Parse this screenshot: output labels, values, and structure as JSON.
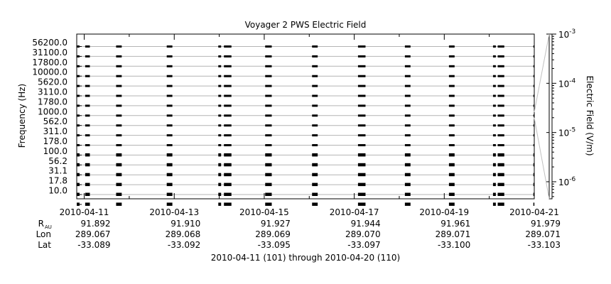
{
  "chart_data": {
    "type": "spectrogram",
    "title": "Voyager 2 PWS Electric Field",
    "ylabel": "Frequency (Hz)",
    "colorbar_label": "Electric Field (V/m)",
    "y_scale": "log",
    "colorbar_scale": "log",
    "colorbar_range": [
      4.5e-07,
      0.001
    ],
    "colorbar_ticks": [
      {
        "value": 0.001,
        "base": "10",
        "exp": "-3"
      },
      {
        "value": 0.0001,
        "base": "10",
        "exp": "-4"
      },
      {
        "value": 1e-05,
        "base": "10",
        "exp": "-5"
      },
      {
        "value": 1e-06,
        "base": "10",
        "exp": "-6"
      }
    ],
    "channels": [
      "56200.0",
      "31100.0",
      "17800.0",
      "10000.0",
      "5620.0",
      "3110.0",
      "1780.0",
      "1000.0",
      "562.0",
      "311.0",
      "178.0",
      "100.0",
      "56.2",
      "31.1",
      "17.8",
      "10.0"
    ],
    "x_range": [
      "2010-04-10T20:00",
      "2010-04-21T00:00"
    ],
    "x_ticks": [
      "2010-04-11",
      "2010-04-13",
      "2010-04-15",
      "2010-04-17",
      "2010-04-19",
      "2010-04-21"
    ],
    "data_intervals": [
      [
        "2010-04-10T20:00",
        "2010-04-10T21:30"
      ],
      [
        "2010-04-11T00:30",
        "2010-04-11T03:00"
      ],
      [
        "2010-04-11T17:00",
        "2010-04-11T20:00"
      ],
      [
        "2010-04-12T20:00",
        "2010-04-12T23:00"
      ],
      [
        "2010-04-13T23:30",
        "2010-04-14T01:00"
      ],
      [
        "2010-04-14T02:30",
        "2010-04-14T06:30"
      ],
      [
        "2010-04-15T00:30",
        "2010-04-15T04:00"
      ],
      [
        "2010-04-16T01:30",
        "2010-04-16T04:30"
      ],
      [
        "2010-04-17T02:00",
        "2010-04-17T06:00"
      ],
      [
        "2010-04-18T03:00",
        "2010-04-18T06:00"
      ],
      [
        "2010-04-19T02:30",
        "2010-04-19T05:30"
      ],
      [
        "2010-04-20T02:00",
        "2010-04-20T03:30"
      ],
      [
        "2010-04-20T04:30",
        "2010-04-20T08:00"
      ],
      [
        "2010-04-20T23:30",
        "2010-04-21T00:00"
      ]
    ],
    "ephemeris": {
      "rows": [
        {
          "label": "R",
          "sub": "AU",
          "values": [
            "91.892",
            "91.910",
            "91.927",
            "91.944",
            "91.961",
            "91.979"
          ]
        },
        {
          "label": "Lon",
          "sub": "",
          "values": [
            "289.067",
            "289.068",
            "289.069",
            "289.070",
            "289.071",
            "289.071"
          ]
        },
        {
          "label": "Lat",
          "sub": "",
          "values": [
            "-33.089",
            "-33.092",
            "-33.095",
            "-33.097",
            "-33.100",
            "-33.103"
          ]
        }
      ]
    },
    "footer": "2010-04-11 (101) through 2010-04-20 (110)"
  }
}
